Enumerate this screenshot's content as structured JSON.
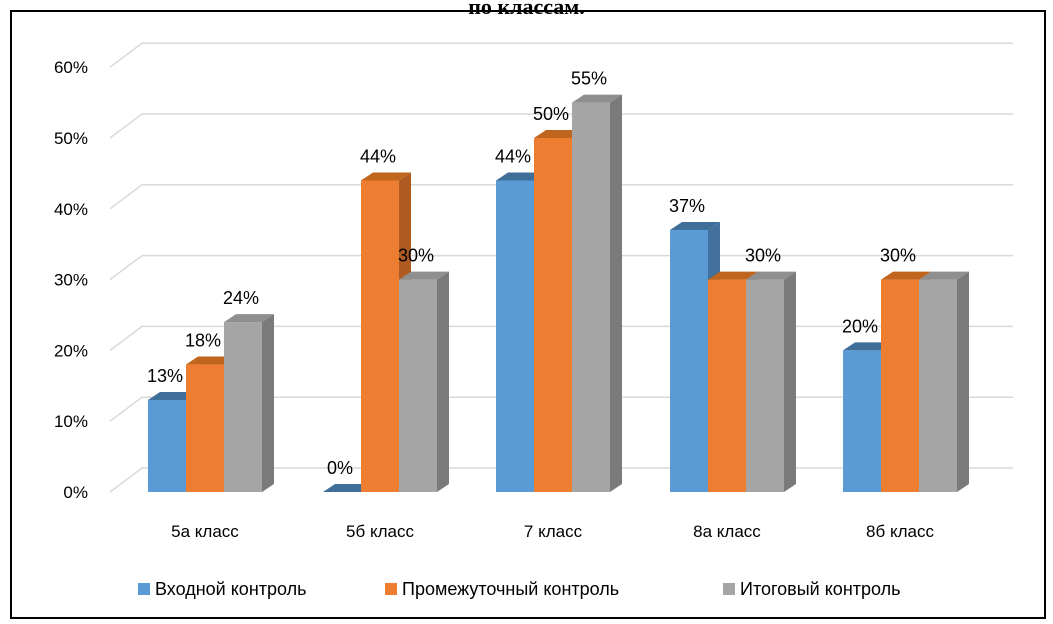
{
  "chart_data": {
    "type": "bar",
    "title": "по классам.",
    "categories": [
      "5а класс",
      "5б класс",
      "7 класс",
      "8а класс",
      "8б класс"
    ],
    "series": [
      {
        "name": "Входной контроль",
        "values": [
          13,
          0,
          44,
          37,
          20
        ],
        "labels": [
          "13%",
          "0%",
          "44%",
          "37%",
          "20%"
        ]
      },
      {
        "name": "Промежуточный контроль",
        "values": [
          18,
          44,
          50,
          30,
          30
        ],
        "labels": [
          "18%",
          "44%",
          "50%",
          "",
          "30%"
        ]
      },
      {
        "name": "Итоговый контроль",
        "values": [
          24,
          30,
          55,
          30,
          30
        ],
        "labels": [
          "24%",
          "30%",
          "55%",
          "30%",
          ""
        ]
      }
    ],
    "y_ticks": [
      "0%",
      "10%",
      "20%",
      "30%",
      "40%",
      "50%",
      "60%"
    ],
    "ylim": [
      0,
      60
    ],
    "grid": true,
    "legend_position": "bottom"
  },
  "colors": {
    "series": [
      "#5b9bd5",
      "#ed7d31",
      "#a5a5a5"
    ],
    "series_side": [
      "#41719c",
      "#ae5a21",
      "#7a7a7a"
    ],
    "series_top": [
      "#3f6e99",
      "#c0651e",
      "#8f8f8f"
    ],
    "grid": "#d9d9d9"
  }
}
